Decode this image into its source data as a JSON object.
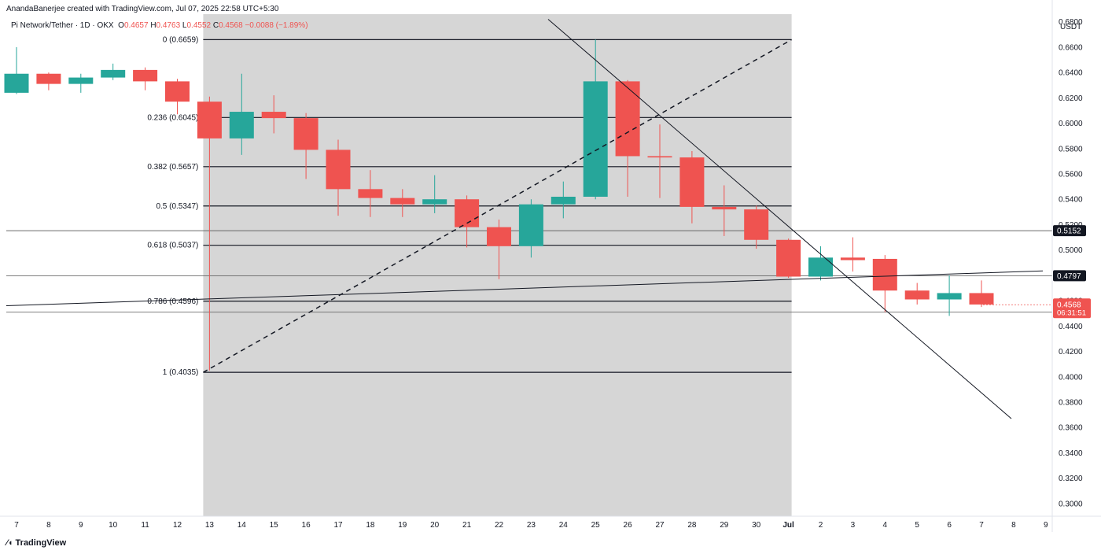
{
  "header": {
    "credit": "AnandaBanerjee created with TradingView.com, Jul 07, 2025 22:58 UTC+5:30",
    "symbol": "Pi Network/Tether · 1D · OKX",
    "o_label": "O",
    "o_value": "0.4657",
    "h_label": "H",
    "h_value": "0.4763",
    "l_label": "L",
    "l_value": "0.4552",
    "c_label": "C",
    "c_value": "0.4568",
    "change": "−0.0088 (−1.89%)"
  },
  "footer": {
    "logo_text": "TradingView"
  },
  "colors": {
    "up": "#26a69a",
    "down": "#ef5350",
    "shade": "#d6d6d6",
    "line": "#131722"
  },
  "chart_data": {
    "type": "candlestick",
    "currency_label": "USDT",
    "ylim": [
      0.29,
      0.686
    ],
    "y_ticks": [
      "0.3000",
      "0.3200",
      "0.3400",
      "0.3600",
      "0.3800",
      "0.4000",
      "0.4200",
      "0.4400",
      "0.4600",
      "0.4800",
      "0.5000",
      "0.5200",
      "0.5400",
      "0.5600",
      "0.5800",
      "0.6000",
      "0.6200",
      "0.6400",
      "0.6600",
      "0.6800"
    ],
    "x_labels": [
      "7",
      "8",
      "9",
      "10",
      "11",
      "12",
      "13",
      "14",
      "15",
      "16",
      "17",
      "18",
      "19",
      "20",
      "21",
      "22",
      "23",
      "24",
      "25",
      "26",
      "27",
      "28",
      "29",
      "30",
      "Jul",
      "2",
      "3",
      "4",
      "5",
      "6",
      "7",
      "8",
      "9"
    ],
    "candles": [
      {
        "x": "7",
        "o": 0.624,
        "h": 0.66,
        "l": 0.623,
        "c": 0.639
      },
      {
        "x": "8",
        "o": 0.639,
        "h": 0.64,
        "l": 0.626,
        "c": 0.631
      },
      {
        "x": "9",
        "o": 0.631,
        "h": 0.639,
        "l": 0.624,
        "c": 0.636
      },
      {
        "x": "10",
        "o": 0.636,
        "h": 0.647,
        "l": 0.634,
        "c": 0.642
      },
      {
        "x": "11",
        "o": 0.642,
        "h": 0.644,
        "l": 0.626,
        "c": 0.633
      },
      {
        "x": "12",
        "o": 0.633,
        "h": 0.635,
        "l": 0.607,
        "c": 0.617
      },
      {
        "x": "13",
        "o": 0.617,
        "h": 0.621,
        "l": 0.405,
        "c": 0.588
      },
      {
        "x": "14",
        "o": 0.588,
        "h": 0.639,
        "l": 0.575,
        "c": 0.609
      },
      {
        "x": "15",
        "o": 0.609,
        "h": 0.622,
        "l": 0.592,
        "c": 0.604
      },
      {
        "x": "16",
        "o": 0.604,
        "h": 0.608,
        "l": 0.556,
        "c": 0.579
      },
      {
        "x": "17",
        "o": 0.579,
        "h": 0.587,
        "l": 0.527,
        "c": 0.548
      },
      {
        "x": "18",
        "o": 0.548,
        "h": 0.563,
        "l": 0.526,
        "c": 0.541
      },
      {
        "x": "19",
        "o": 0.541,
        "h": 0.548,
        "l": 0.526,
        "c": 0.536
      },
      {
        "x": "20",
        "o": 0.536,
        "h": 0.559,
        "l": 0.529,
        "c": 0.54
      },
      {
        "x": "21",
        "o": 0.54,
        "h": 0.543,
        "l": 0.502,
        "c": 0.518
      },
      {
        "x": "22",
        "o": 0.518,
        "h": 0.524,
        "l": 0.477,
        "c": 0.503
      },
      {
        "x": "23",
        "o": 0.503,
        "h": 0.54,
        "l": 0.494,
        "c": 0.536
      },
      {
        "x": "24",
        "o": 0.536,
        "h": 0.554,
        "l": 0.525,
        "c": 0.542
      },
      {
        "x": "25",
        "o": 0.542,
        "h": 0.666,
        "l": 0.54,
        "c": 0.633
      },
      {
        "x": "26",
        "o": 0.633,
        "h": 0.634,
        "l": 0.542,
        "c": 0.574
      },
      {
        "x": "27",
        "o": 0.574,
        "h": 0.599,
        "l": 0.541,
        "c": 0.573
      },
      {
        "x": "28",
        "o": 0.573,
        "h": 0.578,
        "l": 0.521,
        "c": 0.534
      },
      {
        "x": "29",
        "o": 0.534,
        "h": 0.551,
        "l": 0.511,
        "c": 0.532
      },
      {
        "x": "30",
        "o": 0.532,
        "h": 0.535,
        "l": 0.501,
        "c": 0.508
      },
      {
        "x": "Jul",
        "o": 0.508,
        "h": 0.509,
        "l": 0.478,
        "c": 0.479
      },
      {
        "x": "2",
        "o": 0.479,
        "h": 0.503,
        "l": 0.476,
        "c": 0.494
      },
      {
        "x": "3",
        "o": 0.494,
        "h": 0.51,
        "l": 0.483,
        "c": 0.492
      },
      {
        "x": "4",
        "o": 0.493,
        "h": 0.496,
        "l": 0.451,
        "c": 0.468
      },
      {
        "x": "5",
        "o": 0.468,
        "h": 0.474,
        "l": 0.457,
        "c": 0.461
      },
      {
        "x": "6",
        "o": 0.461,
        "h": 0.48,
        "l": 0.448,
        "c": 0.466
      },
      {
        "x": "7",
        "o": 0.466,
        "h": 0.476,
        "l": 0.455,
        "c": 0.457
      }
    ],
    "fib_levels": [
      {
        "label": "0 (0.6659)",
        "value": 0.6659
      },
      {
        "label": "0.236 (0.6045)",
        "value": 0.6045
      },
      {
        "label": "0.382 (0.5657)",
        "value": 0.5657
      },
      {
        "label": "0.5 (0.5347)",
        "value": 0.5347
      },
      {
        "label": "0.618 (0.5037)",
        "value": 0.5037
      },
      {
        "label": "0.786 (0.4596)",
        "value": 0.4596
      },
      {
        "label": "1 (0.4035)",
        "value": 0.4035
      }
    ],
    "fib_range": {
      "from": "13",
      "to": "Jul"
    },
    "horizontal_lines": [
      {
        "label": "0.5152",
        "value": 0.5152
      },
      {
        "label": "0.4797",
        "value": 0.4797
      },
      {
        "label": "0.4509",
        "value": 0.4509
      }
    ],
    "last_price": {
      "label": "0.4568",
      "value": 0.4568,
      "countdown": "06:31:51"
    },
    "trendlines": [
      {
        "name": "descending",
        "x1": "13.7",
        "y1": 0.682,
        "x2": "8.0",
        "y2": 0.367
      },
      {
        "name": "ascending",
        "x1": "7",
        "y1": 0.456,
        "x2": "8.0",
        "y2": 0.4835
      }
    ],
    "fib_diagonal": {
      "x1": "13",
      "y1": 0.4035,
      "x2": "Jul",
      "y2": 0.6659
    }
  }
}
